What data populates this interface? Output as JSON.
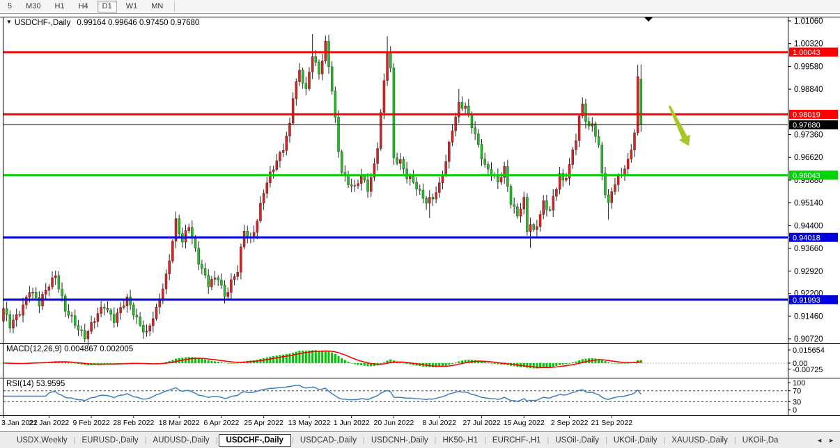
{
  "toolbar": {
    "timeframes": [
      "5",
      "M30",
      "H1",
      "H4",
      "D1",
      "W1",
      "MN"
    ],
    "active_timeframe": "D1"
  },
  "chart_header": {
    "menu_arrow_icon": "▼",
    "title": "USDCHF-,Daily",
    "ohlc_text": "0.99164 0.99646 0.97450 0.97680"
  },
  "indicator_labels": {
    "macd_name": "MACD(12,26,9)",
    "macd_values": "0.004867 0.002005",
    "rsi_name": "RSI(14)",
    "rsi_value": "53.9595"
  },
  "chart_data": {
    "type": "candlestick",
    "symbol": "USDCHF-",
    "timeframe": "Daily",
    "last_candle": {
      "o": 0.99164,
      "h": 0.99646,
      "l": 0.9745,
      "c": 0.9768
    },
    "up_color": "#C92A2A",
    "down_color": "#2EB62E",
    "wick_color": "#222222",
    "price_axis": {
      "max": 1.0106,
      "min": 0.9072,
      "ticks": [
        1.0106,
        1.0032,
        0.9958,
        0.9884,
        0.9736,
        0.9662,
        0.9588,
        0.9514,
        0.944,
        0.9366,
        0.9292,
        0.922,
        0.9146,
        0.9072
      ]
    },
    "hlines": [
      {
        "price": 1.00043,
        "color": "#FF0000",
        "width": 3,
        "label": "1.00043"
      },
      {
        "price": 0.98019,
        "color": "#FF0000",
        "width": 3,
        "label": "0.98019"
      },
      {
        "price": 0.9768,
        "color": "#000000",
        "width": 1,
        "label": "0.97680",
        "current": true
      },
      {
        "price": 0.96043,
        "color": "#00D400",
        "width": 3,
        "label": "0.96043"
      },
      {
        "price": 0.94018,
        "color": "#0000E0",
        "width": 3,
        "label": "0.94018"
      },
      {
        "price": 0.91993,
        "color": "#0000E0",
        "width": 3,
        "label": "0.91993"
      }
    ],
    "time_axis": [
      {
        "text": "3 Jan 2022",
        "day": 0
      },
      {
        "text": "21 Jan 2022",
        "day": 14
      },
      {
        "text": "9 Feb 2022",
        "day": 27
      },
      {
        "text": "28 Feb 2022",
        "day": 40
      },
      {
        "text": "18 Mar 2022",
        "day": 54
      },
      {
        "text": "6 Apr 2022",
        "day": 67
      },
      {
        "text": "25 Apr 2022",
        "day": 80
      },
      {
        "text": "13 May 2022",
        "day": 94
      },
      {
        "text": "1 Jun 2022",
        "day": 107
      },
      {
        "text": "20 Jun 2022",
        "day": 120
      },
      {
        "text": "8 Jul 2022",
        "day": 134
      },
      {
        "text": "27 Jul 2022",
        "day": 147
      },
      {
        "text": "15 Aug 2022",
        "day": 160
      },
      {
        "text": "2 Sep 2022",
        "day": 174
      },
      {
        "text": "21 Sep 2022",
        "day": 187
      }
    ],
    "total_days": 197,
    "close_anchors": [
      [
        0,
        0.917
      ],
      [
        2,
        0.9108
      ],
      [
        5,
        0.916
      ],
      [
        8,
        0.9235
      ],
      [
        11,
        0.918
      ],
      [
        14,
        0.9252
      ],
      [
        16,
        0.9285
      ],
      [
        19,
        0.916
      ],
      [
        22,
        0.912
      ],
      [
        25,
        0.9085
      ],
      [
        28,
        0.913
      ],
      [
        31,
        0.918
      ],
      [
        34,
        0.914
      ],
      [
        38,
        0.9195
      ],
      [
        41,
        0.914
      ],
      [
        44,
        0.909
      ],
      [
        47,
        0.916
      ],
      [
        50,
        0.928
      ],
      [
        53,
        0.9455
      ],
      [
        55,
        0.938
      ],
      [
        57,
        0.944
      ],
      [
        60,
        0.933
      ],
      [
        63,
        0.9245
      ],
      [
        66,
        0.927
      ],
      [
        68,
        0.9215
      ],
      [
        70,
        0.926
      ],
      [
        72,
        0.929
      ],
      [
        74,
        0.942
      ],
      [
        76,
        0.9395
      ],
      [
        78,
        0.9465
      ],
      [
        80,
        0.955
      ],
      [
        82,
        0.96
      ],
      [
        84,
        0.965
      ],
      [
        86,
        0.97
      ],
      [
        88,
        0.977
      ],
      [
        89,
        0.986
      ],
      [
        91,
        0.9935
      ],
      [
        93,
        0.988
      ],
      [
        95,
        1.0005
      ],
      [
        97,
        0.9935
      ],
      [
        99,
        1.0025
      ],
      [
        101,
        0.988
      ],
      [
        103,
        0.969
      ],
      [
        104,
        0.9625
      ],
      [
        106,
        0.958
      ],
      [
        108,
        0.9555
      ],
      [
        110,
        0.96
      ],
      [
        112,
        0.9565
      ],
      [
        114,
        0.964
      ],
      [
        115,
        0.97
      ],
      [
        116,
        0.98
      ],
      [
        117,
        0.99
      ],
      [
        118,
        1.0005
      ],
      [
        119,
        0.9945
      ],
      [
        120,
        0.966
      ],
      [
        122,
        0.9655
      ],
      [
        124,
        0.96
      ],
      [
        126,
        0.9575
      ],
      [
        128,
        0.9545
      ],
      [
        130,
        0.9525
      ],
      [
        132,
        0.9535
      ],
      [
        134,
        0.9565
      ],
      [
        136,
        0.9645
      ],
      [
        138,
        0.976
      ],
      [
        140,
        0.984
      ],
      [
        142,
        0.9825
      ],
      [
        144,
        0.976
      ],
      [
        146,
        0.97
      ],
      [
        148,
        0.964
      ],
      [
        150,
        0.9615
      ],
      [
        152,
        0.9575
      ],
      [
        154,
        0.962
      ],
      [
        156,
        0.952
      ],
      [
        158,
        0.948
      ],
      [
        160,
        0.952
      ],
      [
        161,
        0.942
      ],
      [
        162,
        0.944
      ],
      [
        163,
        0.9415
      ],
      [
        164,
        0.9445
      ],
      [
        166,
        0.952
      ],
      [
        168,
        0.949
      ],
      [
        170,
        0.956
      ],
      [
        171,
        0.96
      ],
      [
        172,
        0.958
      ],
      [
        173,
        0.9605
      ],
      [
        174,
        0.964
      ],
      [
        175,
        0.969
      ],
      [
        176,
        0.973
      ],
      [
        177,
        0.979
      ],
      [
        178,
        0.983
      ],
      [
        179,
        0.978
      ],
      [
        180,
        0.975
      ],
      [
        181,
        0.977
      ],
      [
        182,
        0.974
      ],
      [
        183,
        0.97
      ],
      [
        184,
        0.962
      ],
      [
        185,
        0.955
      ],
      [
        186,
        0.9505
      ],
      [
        187,
        0.955
      ],
      [
        188,
        0.957
      ],
      [
        189,
        0.959
      ],
      [
        190,
        0.961
      ],
      [
        191,
        0.963
      ],
      [
        192,
        0.9655
      ],
      [
        193,
        0.97
      ],
      [
        194,
        0.9745
      ],
      [
        195,
        0.9916
      ],
      [
        196,
        0.9768
      ]
    ],
    "wick_boosts": [
      {
        "day": 25,
        "low": 0.906
      },
      {
        "day": 53,
        "high": 0.9472
      },
      {
        "day": 95,
        "high": 1.0063
      },
      {
        "day": 99,
        "high": 1.0058
      },
      {
        "day": 118,
        "high": 1.0056
      },
      {
        "day": 131,
        "low": 0.9465
      },
      {
        "day": 140,
        "high": 0.9885
      },
      {
        "day": 162,
        "low": 0.9368
      },
      {
        "day": 186,
        "low": 0.946
      },
      {
        "day": 195,
        "high": 0.9963
      }
    ],
    "indicators": {
      "macd": {
        "params": [
          12,
          26,
          9
        ],
        "current_macd": 0.004867,
        "current_signal": 0.002005,
        "axis_labels": [
          0.015654,
          0.0,
          -0.00725
        ],
        "hist_color": "#00C400",
        "signal_color": "#FF0000"
      },
      "rsi": {
        "period": 14,
        "current": 53.9595,
        "axis_labels": [
          100,
          70,
          30,
          0
        ],
        "overbought": 70,
        "oversold": 30,
        "line_color": "#3E7FC4"
      }
    },
    "annotations": [
      {
        "type": "arrow-down-right",
        "color": "#A6C826",
        "tail": {
          "day": 204.7,
          "price": 0.983
        },
        "head": {
          "day": 210.7,
          "price": 0.9699
        }
      },
      {
        "type": "shift-marker",
        "day": 198.3,
        "color": "#000000"
      }
    ]
  },
  "tabbar": {
    "tabs": [
      "USDX,Weekly",
      "EURUSD-,Daily",
      "AUDUSD-,Daily",
      "USDCHF-,Daily",
      "USDCAD-,Daily",
      "USDCNH-,Daily",
      "HK50-,H1",
      "EURCHF-,H1",
      "USOil-,Daily",
      "UKOil-,Daily",
      "XAUUSD-,Daily",
      "UKOil-,Da"
    ],
    "active_tab": "USDCHF-,Daily",
    "scroll_left_icon": "◄",
    "scroll_right_icon": "►"
  }
}
